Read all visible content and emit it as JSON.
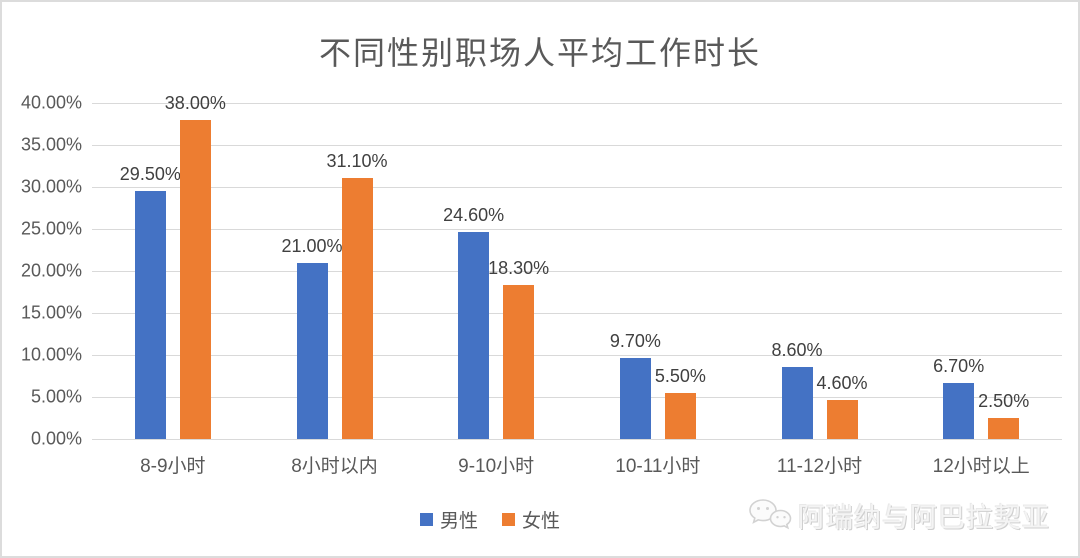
{
  "chart_data": {
    "type": "bar",
    "title": "不同性别职场人平均工作时长",
    "categories": [
      "8-9小时",
      "8小时以内",
      "9-10小时",
      "10-11小时",
      "11-12小时",
      "12小时以上"
    ],
    "series": [
      {
        "name": "男性",
        "color": "#4472C4",
        "values": [
          29.5,
          21.0,
          24.6,
          9.7,
          8.6,
          6.7
        ],
        "labels": [
          "29.50%",
          "21.00%",
          "24.60%",
          "9.70%",
          "8.60%",
          "6.70%"
        ]
      },
      {
        "name": "女性",
        "color": "#ED7D31",
        "values": [
          38.0,
          31.1,
          18.3,
          5.5,
          4.6,
          2.5
        ],
        "labels": [
          "38.00%",
          "31.10%",
          "18.30%",
          "5.50%",
          "4.60%",
          "2.50%"
        ]
      }
    ],
    "y_ticks": [
      "0.00%",
      "5.00%",
      "10.00%",
      "15.00%",
      "20.00%",
      "25.00%",
      "30.00%",
      "35.00%",
      "40.00%"
    ],
    "ylim": [
      0,
      40
    ],
    "grid": true,
    "legend_position": "bottom",
    "gridline_color": "#d9d9d9",
    "text_color": "#595959",
    "data_label_color": "#404040"
  },
  "watermark": {
    "icon": "wechat-icon",
    "text": "阿瑞纳与阿巴拉契亚"
  }
}
